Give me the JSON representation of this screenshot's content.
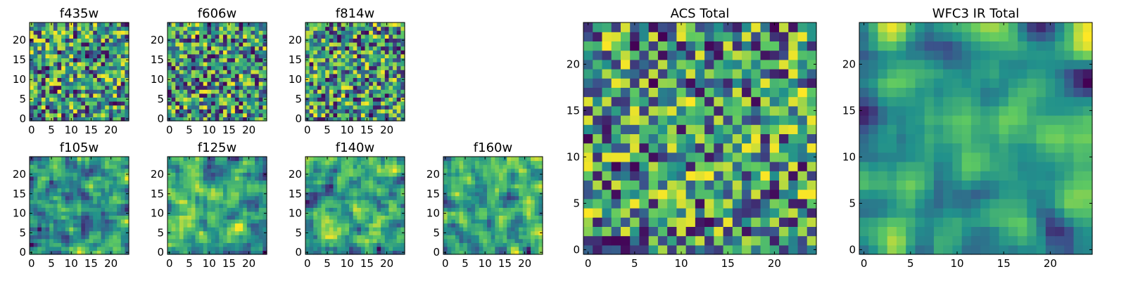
{
  "chart_data": [
    {
      "type": "heatmap",
      "title": "f435w",
      "grid_size": 25,
      "xticks": [
        0,
        5,
        10,
        15,
        20
      ],
      "yticks": [
        0,
        5,
        10,
        15,
        20
      ],
      "colormap": "viridis",
      "seed": 11,
      "smooth": 0
    },
    {
      "type": "heatmap",
      "title": "f606w",
      "grid_size": 25,
      "xticks": [
        0,
        5,
        10,
        15,
        20
      ],
      "yticks": [
        0,
        5,
        10,
        15,
        20
      ],
      "colormap": "viridis",
      "seed": 23,
      "smooth": 0
    },
    {
      "type": "heatmap",
      "title": "f814w",
      "grid_size": 25,
      "xticks": [
        0,
        5,
        10,
        15,
        20
      ],
      "yticks": [
        0,
        5,
        10,
        15,
        20
      ],
      "colormap": "viridis",
      "seed": 37,
      "smooth": 0
    },
    {
      "type": "heatmap",
      "title": "f105w",
      "grid_size": 25,
      "xticks": [
        0,
        5,
        10,
        15,
        20
      ],
      "yticks": [
        0,
        5,
        10,
        15,
        20
      ],
      "colormap": "viridis",
      "seed": 41,
      "smooth": 1
    },
    {
      "type": "heatmap",
      "title": "f125w",
      "grid_size": 25,
      "xticks": [
        0,
        5,
        10,
        15,
        20
      ],
      "yticks": [
        0,
        5,
        10,
        15,
        20
      ],
      "colormap": "viridis",
      "seed": 53,
      "smooth": 1
    },
    {
      "type": "heatmap",
      "title": "f140w",
      "grid_size": 25,
      "xticks": [
        0,
        5,
        10,
        15,
        20
      ],
      "yticks": [
        0,
        5,
        10,
        15,
        20
      ],
      "colormap": "viridis",
      "seed": 67,
      "smooth": 1
    },
    {
      "type": "heatmap",
      "title": "f160w",
      "grid_size": 25,
      "xticks": [
        0,
        5,
        10,
        15,
        20
      ],
      "yticks": [
        0,
        5,
        10,
        15,
        20
      ],
      "colormap": "viridis",
      "seed": 79,
      "smooth": 1
    },
    {
      "type": "heatmap",
      "title": "ACS Total",
      "grid_size": 25,
      "xticks": [
        0,
        5,
        10,
        15,
        20
      ],
      "yticks": [
        0,
        5,
        10,
        15,
        20
      ],
      "colormap": "viridis",
      "seed": 97,
      "smooth": 0
    },
    {
      "type": "heatmap",
      "title": "WFC3 IR Total",
      "grid_size": 25,
      "xticks": [
        0,
        5,
        10,
        15,
        20
      ],
      "yticks": [
        0,
        5,
        10,
        15,
        20
      ],
      "colormap": "viridis",
      "seed": 113,
      "smooth": 2
    }
  ],
  "colors": {
    "viridis": [
      "#440154",
      "#3b528b",
      "#21918c",
      "#5ec962",
      "#fde725"
    ]
  }
}
